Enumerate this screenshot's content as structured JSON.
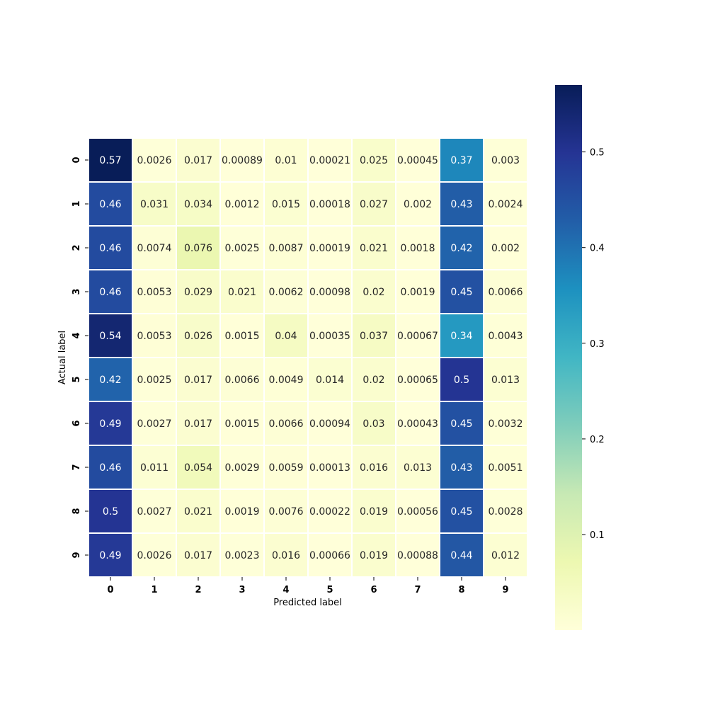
{
  "chart_data": {
    "type": "heatmap",
    "title": "",
    "xlabel": "Predicted label",
    "ylabel": "Actual label",
    "x_categories": [
      "0",
      "1",
      "2",
      "3",
      "4",
      "5",
      "6",
      "7",
      "8",
      "9"
    ],
    "y_categories": [
      "0",
      "1",
      "2",
      "3",
      "4",
      "5",
      "6",
      "7",
      "8",
      "9"
    ],
    "values": [
      [
        0.57,
        0.0026,
        0.017,
        0.00089,
        0.01,
        0.00021,
        0.025,
        0.00045,
        0.37,
        0.003
      ],
      [
        0.46,
        0.031,
        0.034,
        0.0012,
        0.015,
        0.00018,
        0.027,
        0.002,
        0.43,
        0.0024
      ],
      [
        0.46,
        0.0074,
        0.076,
        0.0025,
        0.0087,
        0.00019,
        0.021,
        0.0018,
        0.42,
        0.002
      ],
      [
        0.46,
        0.0053,
        0.029,
        0.021,
        0.0062,
        0.00098,
        0.02,
        0.0019,
        0.45,
        0.0066
      ],
      [
        0.54,
        0.0053,
        0.026,
        0.0015,
        0.04,
        0.00035,
        0.037,
        0.00067,
        0.34,
        0.0043
      ],
      [
        0.42,
        0.0025,
        0.017,
        0.0066,
        0.0049,
        0.014,
        0.02,
        0.00065,
        0.5,
        0.013
      ],
      [
        0.49,
        0.0027,
        0.017,
        0.0015,
        0.0066,
        0.00094,
        0.03,
        0.00043,
        0.45,
        0.0032
      ],
      [
        0.46,
        0.011,
        0.054,
        0.0029,
        0.0059,
        0.00013,
        0.016,
        0.013,
        0.43,
        0.0051
      ],
      [
        0.5,
        0.0027,
        0.021,
        0.0019,
        0.0076,
        0.00022,
        0.019,
        0.00056,
        0.45,
        0.0028
      ],
      [
        0.49,
        0.0026,
        0.017,
        0.0023,
        0.016,
        0.00066,
        0.019,
        0.00088,
        0.44,
        0.012
      ]
    ],
    "value_range": [
      0.00013,
      0.57
    ],
    "colormap": "YlGnBu",
    "colorbar_ticks": [
      0.1,
      0.2,
      0.3,
      0.4,
      0.5
    ],
    "colorbar_tick_labels": [
      "0.1",
      "0.2",
      "0.3",
      "0.4",
      "0.5"
    ],
    "colorbar_placement": "right",
    "grid": false
  }
}
